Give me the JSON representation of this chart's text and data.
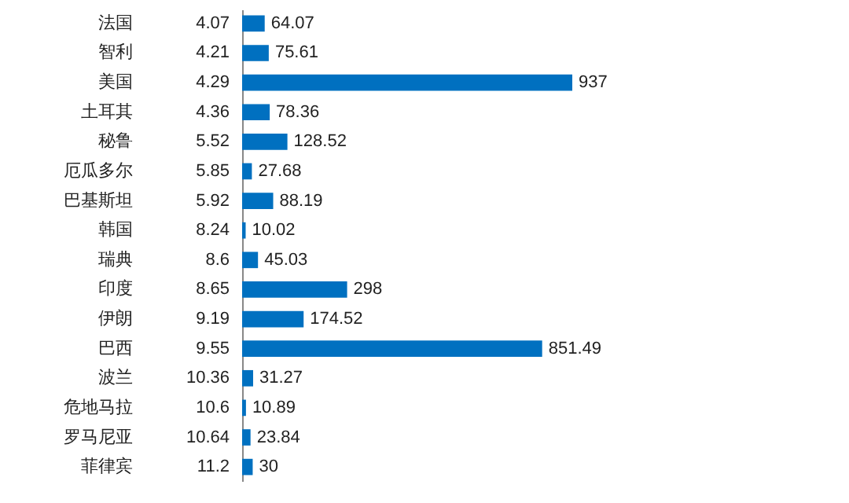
{
  "chart_data": {
    "type": "bar",
    "orientation": "horizontal",
    "data_labels": true,
    "color": "#0070c0",
    "categories": [
      "法国",
      "智利",
      "美国",
      "土耳其",
      "秘鲁",
      "厄瓜多尔",
      "巴基斯坦",
      "韩国",
      "瑞典",
      "印度",
      "伊朗",
      "巴西",
      "波兰",
      "危地马拉",
      "罗马尼亚",
      "菲律宾"
    ],
    "values": [
      64.07,
      75.61,
      937,
      78.36,
      128.52,
      27.68,
      88.19,
      10.02,
      45.03,
      298,
      174.52,
      851.49,
      31.27,
      10.89,
      23.84,
      30
    ],
    "annotations": [
      "4.07",
      "4.21",
      "4.29",
      "4.36",
      "5.52",
      "5.85",
      "5.92",
      "8.24",
      "8.6",
      "8.65",
      "9.19",
      "9.55",
      "10.36",
      "10.6",
      "10.64",
      "11.2"
    ]
  }
}
